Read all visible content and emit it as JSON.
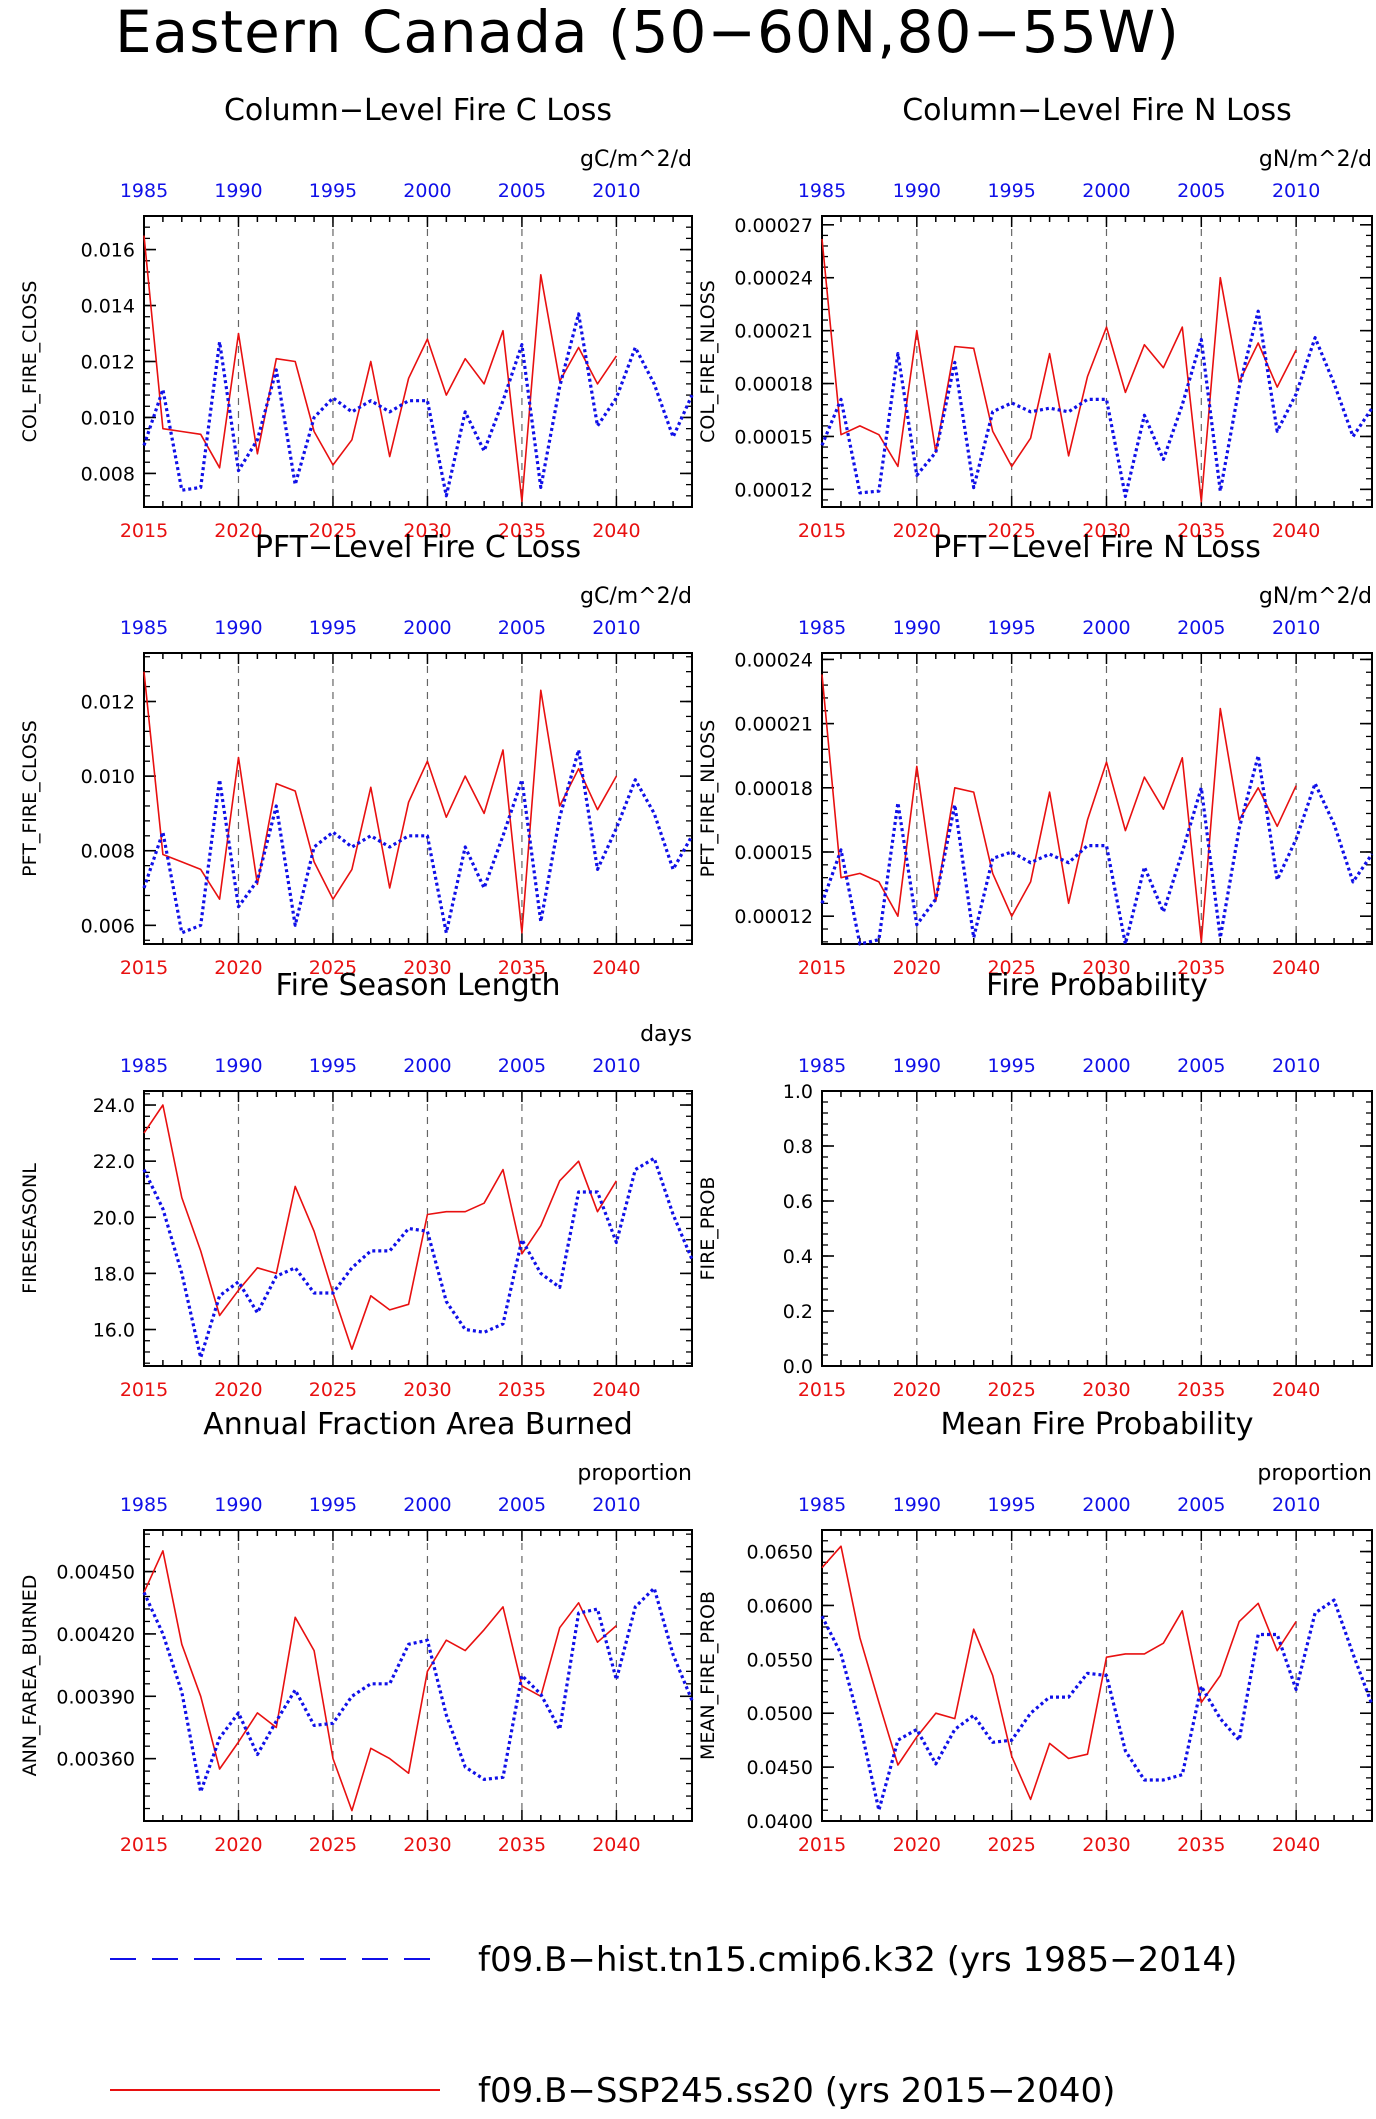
{
  "page_title": "Eastern Canada (50−60N,80−55W)",
  "colors": {
    "hist": "#1010e8",
    "ssp": "#e81010",
    "axis": "#000000",
    "grid": "#666666"
  },
  "legend": [
    {
      "label": "f09.B−hist.tn15.cmip6.k32 (yrs 1985−2014)",
      "style": "dashed",
      "color": "#1010e8"
    },
    {
      "label": "f09.B−SSP245.ss20 (yrs 2015−2040)",
      "style": "solid",
      "color": "#e81010"
    }
  ],
  "chart_data": [
    {
      "id": "col_fire_closs",
      "type": "line",
      "title": "Column−Level Fire C Loss",
      "units": "gC/m^2/d",
      "ylabel": "COL_FIRE_CLOSS",
      "ylim": [
        0.0068,
        0.0172
      ],
      "yticks": [
        0.008,
        0.01,
        0.012,
        0.014,
        0.016
      ],
      "yticklabels": [
        "0.008",
        "0.010",
        "0.012",
        "0.014",
        "0.016"
      ],
      "bottom_axis": {
        "ticks": [
          2015,
          2020,
          2025,
          2030,
          2035,
          2040
        ],
        "labels": [
          "2015",
          "2020",
          "2025",
          "2030",
          "2035",
          "2040"
        ],
        "color": "red"
      },
      "top_axis": {
        "ticks": [
          1985,
          1990,
          1995,
          2000,
          2005,
          2010
        ],
        "labels": [
          "1985",
          "1990",
          "1995",
          "2000",
          "2005",
          "2010"
        ],
        "color": "blue"
      },
      "series": [
        {
          "name": "f09.B−SSP245.ss20",
          "style": "solid",
          "x_start": 2015,
          "values": [
            0.0165,
            0.0096,
            0.0095,
            0.0094,
            0.0082,
            0.013,
            0.0087,
            0.0121,
            0.012,
            0.0095,
            0.0083,
            0.0092,
            0.012,
            0.0086,
            0.0114,
            0.0128,
            0.0108,
            0.0121,
            0.0112,
            0.0131,
            0.007,
            0.0151,
            0.0113,
            0.0125,
            0.0112,
            0.0122
          ]
        },
        {
          "name": "f09.B−hist.tn15.cmip6.k32",
          "style": "dotted",
          "x_start": 2015,
          "values": [
            0.009,
            0.011,
            0.0074,
            0.0075,
            0.0127,
            0.0081,
            0.0092,
            0.0117,
            0.0076,
            0.01,
            0.0107,
            0.0102,
            0.0106,
            0.0102,
            0.0106,
            0.0106,
            0.0072,
            0.0102,
            0.0088,
            0.0106,
            0.0126,
            0.0075,
            0.0111,
            0.0137,
            0.0097,
            0.0107,
            0.0125,
            0.0112,
            0.0093,
            0.0108
          ]
        }
      ]
    },
    {
      "id": "col_fire_nloss",
      "type": "line",
      "title": "Column−Level Fire N Loss",
      "units": "gN/m^2/d",
      "ylabel": "COL_FIRE_NLOSS",
      "ylim": [
        0.00011,
        0.000275
      ],
      "yticks": [
        0.00012,
        0.00015,
        0.00018,
        0.00021,
        0.00024,
        0.00027
      ],
      "yticklabels": [
        "0.00012",
        "0.00015",
        "0.00018",
        "0.00021",
        "0.00024",
        "0.00027"
      ],
      "bottom_axis": {
        "ticks": [
          2015,
          2020,
          2025,
          2030,
          2035,
          2040
        ],
        "labels": [
          "2015",
          "2020",
          "2025",
          "2030",
          "2035",
          "2040"
        ],
        "color": "red"
      },
      "top_axis": {
        "ticks": [
          1985,
          1990,
          1995,
          2000,
          2005,
          2010
        ],
        "labels": [
          "1985",
          "1990",
          "1995",
          "2000",
          "2005",
          "2010"
        ],
        "color": "blue"
      },
      "series": [
        {
          "name": "f09.B−SSP245.ss20",
          "style": "solid",
          "x_start": 2015,
          "values": [
            0.000262,
            0.000151,
            0.000156,
            0.000151,
            0.000133,
            0.00021,
            0.000141,
            0.000201,
            0.0002,
            0.000153,
            0.000133,
            0.000149,
            0.000197,
            0.000139,
            0.000184,
            0.000212,
            0.000175,
            0.000202,
            0.000189,
            0.000212,
            0.000113,
            0.00024,
            0.000181,
            0.000203,
            0.000178,
            0.000199
          ]
        },
        {
          "name": "f09.B−hist.tn15.cmip6.k32",
          "style": "dotted",
          "x_start": 2015,
          "values": [
            0.000145,
            0.000171,
            0.000118,
            0.000119,
            0.000197,
            0.000128,
            0.000141,
            0.000192,
            0.000121,
            0.000164,
            0.000169,
            0.000164,
            0.000166,
            0.000164,
            0.000171,
            0.000171,
            0.000116,
            0.000162,
            0.000137,
            0.000168,
            0.000205,
            0.000119,
            0.000178,
            0.000221,
            0.000153,
            0.000174,
            0.000206,
            0.00018,
            0.00015,
            0.000166
          ]
        }
      ]
    },
    {
      "id": "pft_fire_closs",
      "type": "line",
      "title": "PFT−Level Fire C Loss",
      "units": "gC/m^2/d",
      "ylabel": "PFT_FIRE_CLOSS",
      "ylim": [
        0.0055,
        0.0133
      ],
      "yticks": [
        0.006,
        0.008,
        0.01,
        0.012
      ],
      "yticklabels": [
        "0.006",
        "0.008",
        "0.010",
        "0.012"
      ],
      "bottom_axis": {
        "ticks": [
          2015,
          2020,
          2025,
          2030,
          2035,
          2040
        ],
        "labels": [
          "2015",
          "2020",
          "2025",
          "2030",
          "2035",
          "2040"
        ],
        "color": "red"
      },
      "top_axis": {
        "ticks": [
          1985,
          1990,
          1995,
          2000,
          2005,
          2010
        ],
        "labels": [
          "1985",
          "1990",
          "1995",
          "2000",
          "2005",
          "2010"
        ],
        "color": "blue"
      },
      "series": [
        {
          "name": "f09.B−SSP245.ss20",
          "style": "solid",
          "x_start": 2015,
          "values": [
            0.0128,
            0.0079,
            0.0077,
            0.0075,
            0.0067,
            0.0105,
            0.0071,
            0.0098,
            0.0096,
            0.0077,
            0.0067,
            0.0075,
            0.0097,
            0.007,
            0.0093,
            0.0104,
            0.0089,
            0.01,
            0.009,
            0.0107,
            0.0058,
            0.0123,
            0.0092,
            0.0102,
            0.0091,
            0.01
          ]
        },
        {
          "name": "f09.B−hist.tn15.cmip6.k32",
          "style": "dotted",
          "x_start": 2015,
          "values": [
            0.007,
            0.0085,
            0.0058,
            0.006,
            0.0099,
            0.0065,
            0.0072,
            0.0092,
            0.006,
            0.0081,
            0.0085,
            0.0081,
            0.0084,
            0.0081,
            0.0084,
            0.0084,
            0.0058,
            0.0081,
            0.007,
            0.0084,
            0.0099,
            0.0061,
            0.0089,
            0.0107,
            0.0075,
            0.0086,
            0.0099,
            0.009,
            0.0075,
            0.0084
          ]
        }
      ]
    },
    {
      "id": "pft_fire_nloss",
      "type": "line",
      "title": "PFT−Level Fire N Loss",
      "units": "gN/m^2/d",
      "ylabel": "PFT_FIRE_NLOSS",
      "ylim": [
        0.000107,
        0.000243
      ],
      "yticks": [
        0.00012,
        0.00015,
        0.00018,
        0.00021,
        0.00024
      ],
      "yticklabels": [
        "0.00012",
        "0.00015",
        "0.00018",
        "0.00021",
        "0.00024"
      ],
      "bottom_axis": {
        "ticks": [
          2015,
          2020,
          2025,
          2030,
          2035,
          2040
        ],
        "labels": [
          "2015",
          "2020",
          "2025",
          "2030",
          "2035",
          "2040"
        ],
        "color": "red"
      },
      "top_axis": {
        "ticks": [
          1985,
          1990,
          1995,
          2000,
          2005,
          2010
        ],
        "labels": [
          "1985",
          "1990",
          "1995",
          "2000",
          "2005",
          "2010"
        ],
        "color": "blue"
      },
      "series": [
        {
          "name": "f09.B−SSP245.ss20",
          "style": "solid",
          "x_start": 2015,
          "values": [
            0.000233,
            0.000138,
            0.00014,
            0.000136,
            0.00012,
            0.00019,
            0.000127,
            0.00018,
            0.000178,
            0.00014,
            0.00012,
            0.000136,
            0.000178,
            0.000126,
            0.000165,
            0.000192,
            0.00016,
            0.000185,
            0.00017,
            0.000194,
            0.000108,
            0.000217,
            0.000165,
            0.00018,
            0.000162,
            0.000181
          ]
        },
        {
          "name": "f09.B−hist.tn15.cmip6.k32",
          "style": "dotted",
          "x_start": 2015,
          "values": [
            0.000126,
            0.000151,
            0.000107,
            0.000109,
            0.000173,
            0.000116,
            0.000128,
            0.000172,
            0.00011,
            0.000147,
            0.00015,
            0.000145,
            0.000149,
            0.000145,
            0.000153,
            0.000153,
            0.000107,
            0.000143,
            0.000122,
            0.00015,
            0.00018,
            0.00011,
            0.000161,
            0.000195,
            0.000137,
            0.000156,
            0.000182,
            0.000163,
            0.000136,
            0.000149
          ]
        }
      ]
    },
    {
      "id": "fireseasonl",
      "type": "line",
      "title": "Fire Season Length",
      "units": "days",
      "ylabel": "FIRESEASONL",
      "ylim": [
        14.7,
        24.5
      ],
      "yticks": [
        16.0,
        18.0,
        20.0,
        22.0,
        24.0
      ],
      "yticklabels": [
        "16.0",
        "18.0",
        "20.0",
        "22.0",
        "24.0"
      ],
      "bottom_axis": {
        "ticks": [
          2015,
          2020,
          2025,
          2030,
          2035,
          2040
        ],
        "labels": [
          "2015",
          "2020",
          "2025",
          "2030",
          "2035",
          "2040"
        ],
        "color": "red"
      },
      "top_axis": {
        "ticks": [
          1985,
          1990,
          1995,
          2000,
          2005,
          2010
        ],
        "labels": [
          "1985",
          "1990",
          "1995",
          "2000",
          "2005",
          "2010"
        ],
        "color": "blue"
      },
      "series": [
        {
          "name": "f09.B−SSP245.ss20",
          "style": "solid",
          "x_start": 2015,
          "values": [
            23.0,
            24.0,
            20.7,
            18.8,
            16.5,
            17.4,
            18.2,
            18.0,
            21.1,
            19.5,
            17.3,
            15.3,
            17.2,
            16.7,
            16.9,
            20.1,
            20.2,
            20.2,
            20.5,
            21.7,
            18.7,
            19.7,
            21.3,
            22.0,
            20.2,
            21.3
          ]
        },
        {
          "name": "f09.B−hist.tn15.cmip6.k32",
          "style": "dotted",
          "x_start": 2015,
          "values": [
            21.7,
            20.3,
            18.0,
            15.0,
            17.2,
            17.7,
            16.6,
            17.9,
            18.2,
            17.3,
            17.3,
            18.2,
            18.8,
            18.8,
            19.6,
            19.5,
            17.0,
            16.0,
            15.9,
            16.2,
            19.2,
            18.0,
            17.5,
            20.9,
            20.9,
            19.1,
            21.7,
            22.1,
            20.1,
            18.5
          ]
        }
      ]
    },
    {
      "id": "fire_prob",
      "type": "line",
      "title": "Fire Probability",
      "units": "",
      "ylabel": "FIRE_PROB",
      "ylim": [
        0.0,
        1.0
      ],
      "yticks": [
        0.0,
        0.2,
        0.4,
        0.6,
        0.8,
        1.0
      ],
      "yticklabels": [
        "0.0",
        "0.2",
        "0.4",
        "0.6",
        "0.8",
        "1.0"
      ],
      "bottom_axis": {
        "ticks": [
          2015,
          2020,
          2025,
          2030,
          2035,
          2040
        ],
        "labels": [
          "2015",
          "2020",
          "2025",
          "2030",
          "2035",
          "2040"
        ],
        "color": "red"
      },
      "top_axis": {
        "ticks": [
          1985,
          1990,
          1995,
          2000,
          2005,
          2010
        ],
        "labels": [
          "1985",
          "1990",
          "1995",
          "2000",
          "2005",
          "2010"
        ],
        "color": "blue"
      },
      "series": []
    },
    {
      "id": "ann_farea_burned",
      "type": "line",
      "title": "Annual Fraction Area Burned",
      "units": "proportion",
      "ylabel": "ANN_FAREA_BURNED",
      "ylim": [
        0.0033,
        0.0047
      ],
      "yticks": [
        0.0036,
        0.0039,
        0.0042,
        0.0045
      ],
      "yticklabels": [
        "0.00360",
        "0.00390",
        "0.00420",
        "0.00450"
      ],
      "bottom_axis": {
        "ticks": [
          2015,
          2020,
          2025,
          2030,
          2035,
          2040
        ],
        "labels": [
          "2015",
          "2020",
          "2025",
          "2030",
          "2035",
          "2040"
        ],
        "color": "red"
      },
      "top_axis": {
        "ticks": [
          1985,
          1990,
          1995,
          2000,
          2005,
          2010
        ],
        "labels": [
          "1985",
          "1990",
          "1995",
          "2000",
          "2005",
          "2010"
        ],
        "color": "blue"
      },
      "series": [
        {
          "name": "f09.B−SSP245.ss20",
          "style": "solid",
          "x_start": 2015,
          "values": [
            0.0044,
            0.0046,
            0.00415,
            0.0039,
            0.00355,
            0.00368,
            0.00382,
            0.00375,
            0.00428,
            0.00412,
            0.0036,
            0.00335,
            0.00365,
            0.0036,
            0.00353,
            0.00402,
            0.00417,
            0.00412,
            0.00422,
            0.00433,
            0.00395,
            0.0039,
            0.00423,
            0.00435,
            0.00416,
            0.00424
          ]
        },
        {
          "name": "f09.B−hist.tn15.cmip6.k32",
          "style": "dotted",
          "x_start": 2015,
          "values": [
            0.0044,
            0.0042,
            0.00392,
            0.00344,
            0.0037,
            0.00382,
            0.00362,
            0.00378,
            0.00393,
            0.00376,
            0.00377,
            0.0039,
            0.00396,
            0.00396,
            0.00415,
            0.00417,
            0.00381,
            0.00356,
            0.0035,
            0.00351,
            0.004,
            0.00391,
            0.00374,
            0.0043,
            0.00432,
            0.00398,
            0.00433,
            0.00442,
            0.0041,
            0.00388
          ]
        }
      ]
    },
    {
      "id": "mean_fire_prob",
      "type": "line",
      "title": "Mean Fire Probability",
      "units": "proportion",
      "ylabel": "MEAN_FIRE_PROB",
      "ylim": [
        0.04,
        0.067
      ],
      "yticks": [
        0.04,
        0.045,
        0.05,
        0.055,
        0.06,
        0.065
      ],
      "yticklabels": [
        "0.0400",
        "0.0450",
        "0.0500",
        "0.0550",
        "0.0600",
        "0.0650"
      ],
      "bottom_axis": {
        "ticks": [
          2015,
          2020,
          2025,
          2030,
          2035,
          2040
        ],
        "labels": [
          "2015",
          "2020",
          "2025",
          "2030",
          "2035",
          "2040"
        ],
        "color": "red"
      },
      "top_axis": {
        "ticks": [
          1985,
          1990,
          1995,
          2000,
          2005,
          2010
        ],
        "labels": [
          "1985",
          "1990",
          "1995",
          "2000",
          "2005",
          "2010"
        ],
        "color": "blue"
      },
      "series": [
        {
          "name": "f09.B−SSP245.ss20",
          "style": "solid",
          "x_start": 2015,
          "values": [
            0.0635,
            0.0655,
            0.057,
            0.051,
            0.0452,
            0.0478,
            0.05,
            0.0495,
            0.0578,
            0.0535,
            0.046,
            0.042,
            0.0472,
            0.0458,
            0.0462,
            0.0552,
            0.0555,
            0.0555,
            0.0565,
            0.0595,
            0.051,
            0.0535,
            0.0585,
            0.0602,
            0.0558,
            0.0585
          ]
        },
        {
          "name": "f09.B−hist.tn15.cmip6.k32",
          "style": "dotted",
          "x_start": 2015,
          "values": [
            0.059,
            0.0555,
            0.049,
            0.041,
            0.0475,
            0.0485,
            0.0453,
            0.0485,
            0.0498,
            0.0473,
            0.0475,
            0.05,
            0.0515,
            0.0515,
            0.0537,
            0.0535,
            0.0465,
            0.0438,
            0.0438,
            0.0443,
            0.0525,
            0.0495,
            0.0475,
            0.0573,
            0.0573,
            0.0522,
            0.0593,
            0.0605,
            0.0555,
            0.0508
          ]
        }
      ]
    }
  ]
}
